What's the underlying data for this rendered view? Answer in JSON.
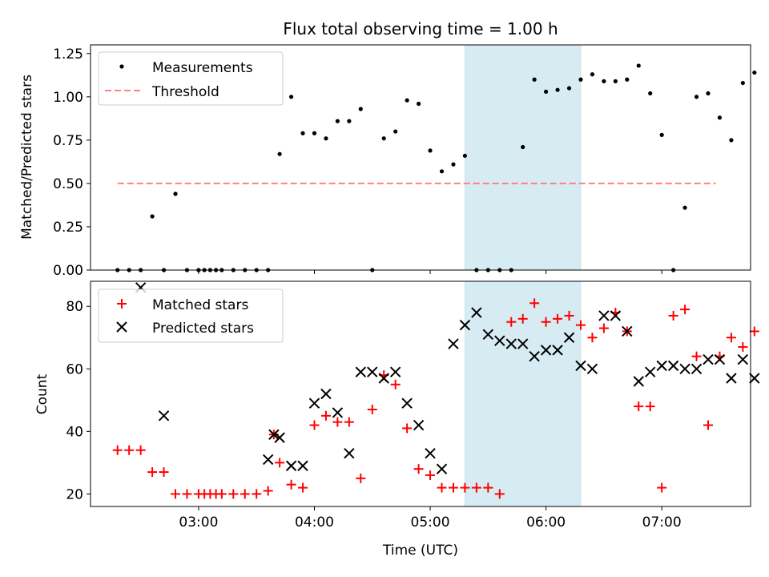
{
  "chart_data": [
    {
      "type": "scatter",
      "title": "Flux total observing time = 1.00 h",
      "xlabel": "",
      "ylabel": "Matched/Predicted stars",
      "xlim": [
        "02:04",
        "07:46"
      ],
      "ylim": [
        0,
        1.3
      ],
      "yticks": [
        0,
        0.25,
        0.5,
        0.75,
        1.0,
        1.25
      ],
      "ytick_labels": [
        "0.00",
        "0.25",
        "0.50",
        "0.75",
        "1.00",
        "1.25"
      ],
      "legend_position": "upper-left",
      "highlight_span": [
        "05:18",
        "06:18"
      ],
      "highlight_color": "#add8e6",
      "series": [
        {
          "name": "Measurements",
          "marker": "dot",
          "color": "#000000",
          "x": [
            "02:18",
            "02:24",
            "02:30",
            "02:36",
            "02:42",
            "02:48",
            "02:54",
            "03:00",
            "03:03",
            "03:06",
            "03:09",
            "03:12",
            "03:18",
            "03:24",
            "03:30",
            "03:36",
            "03:42",
            "03:48",
            "03:54",
            "04:00",
            "04:06",
            "04:12",
            "04:18",
            "04:24",
            "04:30",
            "04:36",
            "04:42",
            "04:48",
            "04:54",
            "05:00",
            "05:06",
            "05:12",
            "05:18",
            "05:24",
            "05:30",
            "05:36",
            "05:42",
            "05:48",
            "05:54",
            "06:00",
            "06:06",
            "06:12",
            "06:18",
            "06:24",
            "06:30",
            "06:36",
            "06:42",
            "06:48",
            "06:54",
            "07:00",
            "07:06",
            "07:12",
            "07:18",
            "07:24",
            "07:30",
            "07:36",
            "07:42",
            "07:48"
          ],
          "y": [
            0,
            0,
            0,
            0.31,
            0,
            0.44,
            0,
            0,
            0,
            0,
            0,
            0,
            0,
            0,
            0,
            0,
            0.67,
            1.0,
            0.79,
            0.79,
            0.76,
            0.86,
            0.86,
            0.93,
            0,
            0.76,
            0.8,
            0.98,
            0.96,
            0.69,
            0.57,
            0.61,
            0.66,
            0,
            0,
            0,
            0,
            0.71,
            1.1,
            1.03,
            1.04,
            1.05,
            1.1,
            1.13,
            1.09,
            1.09,
            1.1,
            1.18,
            1.02,
            0.78,
            0,
            0.36,
            1.0,
            1.02,
            0.88,
            0.75,
            1.08,
            1.14
          ]
        },
        {
          "name": "Threshold",
          "marker": "dashed-line",
          "color": "#ff8080",
          "x": [
            "02:18",
            "07:28"
          ],
          "y": [
            0.5,
            0.5
          ]
        }
      ]
    },
    {
      "type": "scatter",
      "title": "",
      "xlabel": "Time (UTC)",
      "ylabel": "Count",
      "xlim": [
        "02:04",
        "07:46"
      ],
      "ylim": [
        16,
        88
      ],
      "yticks": [
        20,
        40,
        60,
        80
      ],
      "ytick_labels": [
        "20",
        "40",
        "60",
        "80"
      ],
      "xticks": [
        "03:00",
        "04:00",
        "05:00",
        "06:00",
        "07:00"
      ],
      "xtick_labels": [
        "03:00",
        "04:00",
        "05:00",
        "06:00",
        "07:00"
      ],
      "legend_position": "upper-left",
      "highlight_span": [
        "05:18",
        "06:18"
      ],
      "highlight_color": "#add8e6",
      "series": [
        {
          "name": "Matched stars",
          "marker": "plus",
          "color": "#ff0000",
          "x": [
            "02:18",
            "02:24",
            "02:30",
            "02:36",
            "02:42",
            "02:48",
            "02:54",
            "03:00",
            "03:03",
            "03:06",
            "03:09",
            "03:12",
            "03:18",
            "03:24",
            "03:30",
            "03:36",
            "03:39",
            "03:42",
            "03:48",
            "03:54",
            "04:00",
            "04:06",
            "04:12",
            "04:18",
            "04:24",
            "04:30",
            "04:36",
            "04:42",
            "04:48",
            "04:54",
            "05:00",
            "05:06",
            "05:12",
            "05:18",
            "05:24",
            "05:30",
            "05:36",
            "05:42",
            "05:48",
            "05:54",
            "06:00",
            "06:06",
            "06:12",
            "06:18",
            "06:24",
            "06:30",
            "06:36",
            "06:42",
            "06:48",
            "06:54",
            "07:00",
            "07:06",
            "07:12",
            "07:18",
            "07:24",
            "07:30",
            "07:36",
            "07:42",
            "07:48"
          ],
          "y": [
            34,
            34,
            34,
            27,
            27,
            20,
            20,
            20,
            20,
            20,
            20,
            20,
            20,
            20,
            20,
            21,
            39,
            30,
            23,
            22,
            42,
            45,
            43,
            43,
            25,
            47,
            58,
            55,
            41,
            28,
            26,
            22,
            22,
            22,
            22,
            22,
            20,
            75,
            76,
            81,
            75,
            76,
            77,
            74,
            70,
            73,
            78,
            72,
            48,
            48,
            22,
            77,
            79,
            64,
            42,
            64,
            70,
            67,
            72
          ]
        },
        {
          "name": "Predicted stars",
          "marker": "x",
          "color": "#000000",
          "x": [
            "02:30",
            "02:42",
            "03:36",
            "03:39",
            "03:42",
            "03:48",
            "03:54",
            "04:00",
            "04:06",
            "04:12",
            "04:18",
            "04:24",
            "04:30",
            "04:36",
            "04:42",
            "04:48",
            "04:54",
            "05:00",
            "05:06",
            "05:12",
            "05:18",
            "05:24",
            "05:30",
            "05:36",
            "05:42",
            "05:48",
            "05:54",
            "06:00",
            "06:06",
            "06:12",
            "06:18",
            "06:24",
            "06:30",
            "06:36",
            "06:42",
            "06:48",
            "06:54",
            "07:00",
            "07:06",
            "07:12",
            "07:18",
            "07:24",
            "07:30",
            "07:36",
            "07:42",
            "07:48"
          ],
          "y": [
            86,
            45,
            31,
            39,
            38,
            29,
            29,
            49,
            52,
            46,
            33,
            59,
            59,
            57,
            59,
            49,
            42,
            33,
            28,
            68,
            74,
            78,
            71,
            69,
            68,
            68,
            64,
            66,
            66,
            70,
            61,
            60,
            77,
            77,
            72,
            56,
            59,
            61,
            61,
            60,
            60,
            63,
            63,
            57,
            63,
            57
          ]
        }
      ]
    }
  ]
}
